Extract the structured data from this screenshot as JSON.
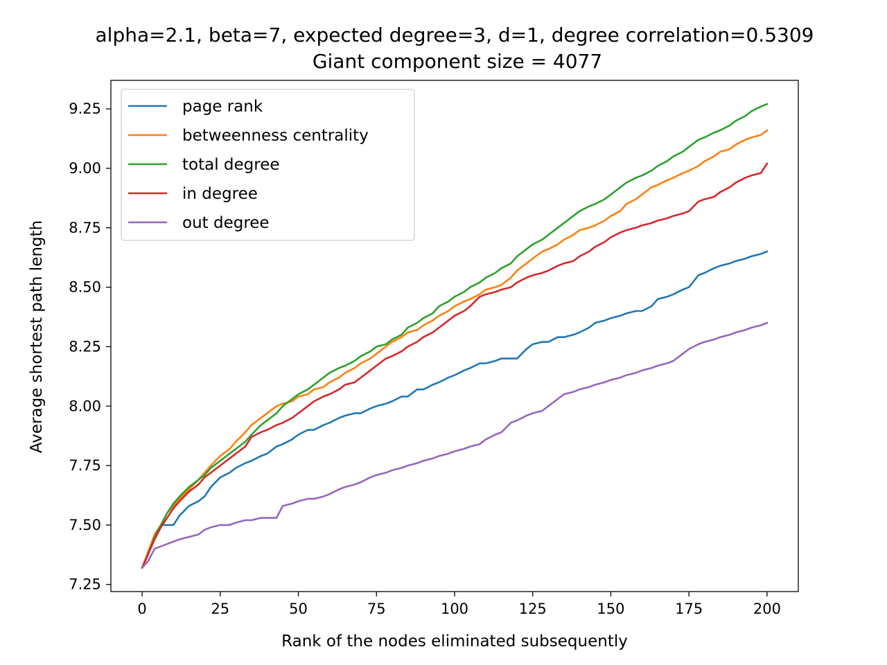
{
  "chart_data": {
    "type": "line",
    "title": "alpha=2.1, beta=7, expected degree=3, d=1, degree correlation=0.5309",
    "subtitle": "Giant component size = 4077",
    "xlabel": "Rank of the nodes eliminated subsequently",
    "ylabel": "Average shortest path length",
    "xlim": [
      -10,
      210
    ],
    "ylim": [
      7.22,
      9.37
    ],
    "xticks": [
      0,
      25,
      50,
      75,
      100,
      125,
      150,
      175,
      200
    ],
    "xtick_labels": [
      "0",
      "25",
      "50",
      "75",
      "100",
      "125",
      "150",
      "175",
      "200"
    ],
    "yticks": [
      7.25,
      7.5,
      7.75,
      8.0,
      8.25,
      8.5,
      8.75,
      9.0,
      9.25
    ],
    "ytick_labels": [
      "7.25",
      "7.50",
      "7.75",
      "8.00",
      "8.25",
      "8.50",
      "8.75",
      "9.00",
      "9.25"
    ],
    "grid": false,
    "legend_position": "top-left",
    "series": [
      {
        "name": "page rank",
        "color": "#1f77b4",
        "x": [
          0,
          2,
          4,
          6,
          8,
          10,
          12,
          15,
          18,
          20,
          22,
          25,
          28,
          30,
          33,
          35,
          38,
          40,
          43,
          45,
          48,
          50,
          53,
          55,
          58,
          60,
          63,
          65,
          68,
          70,
          73,
          75,
          78,
          80,
          83,
          85,
          88,
          90,
          93,
          95,
          98,
          100,
          103,
          105,
          108,
          110,
          113,
          115,
          118,
          120,
          123,
          125,
          128,
          130,
          133,
          135,
          138,
          140,
          143,
          145,
          148,
          150,
          153,
          155,
          158,
          160,
          163,
          165,
          168,
          170,
          173,
          175,
          178,
          180,
          183,
          185,
          188,
          190,
          193,
          195,
          198,
          200
        ],
        "y": [
          7.32,
          7.38,
          7.45,
          7.5,
          7.5,
          7.5,
          7.54,
          7.58,
          7.6,
          7.62,
          7.66,
          7.7,
          7.72,
          7.74,
          7.76,
          7.77,
          7.79,
          7.8,
          7.83,
          7.84,
          7.86,
          7.88,
          7.9,
          7.9,
          7.92,
          7.93,
          7.95,
          7.96,
          7.97,
          7.97,
          7.99,
          8.0,
          8.01,
          8.02,
          8.04,
          8.04,
          8.07,
          8.07,
          8.09,
          8.1,
          8.12,
          8.13,
          8.15,
          8.16,
          8.18,
          8.18,
          8.19,
          8.2,
          8.2,
          8.2,
          8.24,
          8.26,
          8.27,
          8.27,
          8.29,
          8.29,
          8.3,
          8.31,
          8.33,
          8.35,
          8.36,
          8.37,
          8.38,
          8.39,
          8.4,
          8.4,
          8.42,
          8.45,
          8.46,
          8.47,
          8.49,
          8.5,
          8.55,
          8.56,
          8.58,
          8.59,
          8.6,
          8.61,
          8.62,
          8.63,
          8.64,
          8.65
        ]
      },
      {
        "name": "betweenness centrality",
        "color": "#ff7f0e",
        "x": [
          0,
          2,
          4,
          6,
          8,
          10,
          12,
          15,
          18,
          20,
          22,
          25,
          28,
          30,
          33,
          35,
          38,
          40,
          43,
          45,
          48,
          50,
          53,
          55,
          58,
          60,
          63,
          65,
          68,
          70,
          73,
          75,
          78,
          80,
          83,
          85,
          88,
          90,
          93,
          95,
          98,
          100,
          103,
          105,
          108,
          110,
          113,
          115,
          118,
          120,
          123,
          125,
          128,
          130,
          133,
          135,
          138,
          140,
          143,
          145,
          148,
          150,
          153,
          155,
          158,
          160,
          163,
          165,
          168,
          170,
          173,
          175,
          178,
          180,
          183,
          185,
          188,
          190,
          193,
          195,
          198,
          200
        ],
        "y": [
          7.32,
          7.39,
          7.46,
          7.5,
          7.55,
          7.58,
          7.61,
          7.65,
          7.69,
          7.72,
          7.75,
          7.79,
          7.82,
          7.85,
          7.89,
          7.92,
          7.95,
          7.97,
          8.0,
          8.01,
          8.02,
          8.04,
          8.05,
          8.07,
          8.08,
          8.1,
          8.12,
          8.14,
          8.16,
          8.18,
          8.2,
          8.22,
          8.25,
          8.27,
          8.29,
          8.31,
          8.32,
          8.34,
          8.36,
          8.38,
          8.4,
          8.42,
          8.44,
          8.45,
          8.47,
          8.49,
          8.5,
          8.51,
          8.54,
          8.57,
          8.6,
          8.62,
          8.65,
          8.66,
          8.68,
          8.7,
          8.72,
          8.74,
          8.75,
          8.76,
          8.78,
          8.8,
          8.82,
          8.85,
          8.87,
          8.89,
          8.92,
          8.93,
          8.95,
          8.96,
          8.98,
          8.99,
          9.01,
          9.03,
          9.05,
          9.07,
          9.08,
          9.1,
          9.12,
          9.13,
          9.14,
          9.16
        ]
      },
      {
        "name": "total degree",
        "color": "#2ca02c",
        "x": [
          0,
          2,
          4,
          6,
          8,
          10,
          12,
          15,
          18,
          20,
          22,
          25,
          28,
          30,
          33,
          35,
          38,
          40,
          43,
          45,
          48,
          50,
          53,
          55,
          58,
          60,
          63,
          65,
          68,
          70,
          73,
          75,
          78,
          80,
          83,
          85,
          88,
          90,
          93,
          95,
          98,
          100,
          103,
          105,
          108,
          110,
          113,
          115,
          118,
          120,
          123,
          125,
          128,
          130,
          133,
          135,
          138,
          140,
          143,
          145,
          148,
          150,
          153,
          155,
          158,
          160,
          163,
          165,
          168,
          170,
          173,
          175,
          178,
          180,
          183,
          185,
          188,
          190,
          193,
          195,
          198,
          200
        ],
        "y": [
          7.32,
          7.38,
          7.45,
          7.5,
          7.55,
          7.59,
          7.62,
          7.66,
          7.69,
          7.71,
          7.74,
          7.77,
          7.8,
          7.82,
          7.85,
          7.88,
          7.92,
          7.94,
          7.97,
          8.0,
          8.03,
          8.05,
          8.07,
          8.09,
          8.12,
          8.14,
          8.16,
          8.17,
          8.19,
          8.21,
          8.23,
          8.25,
          8.26,
          8.28,
          8.3,
          8.33,
          8.35,
          8.37,
          8.39,
          8.42,
          8.44,
          8.46,
          8.48,
          8.5,
          8.52,
          8.54,
          8.56,
          8.58,
          8.6,
          8.63,
          8.66,
          8.68,
          8.7,
          8.72,
          8.75,
          8.77,
          8.8,
          8.82,
          8.84,
          8.85,
          8.87,
          8.89,
          8.92,
          8.94,
          8.96,
          8.97,
          8.99,
          9.01,
          9.03,
          9.05,
          9.07,
          9.09,
          9.12,
          9.13,
          9.15,
          9.16,
          9.18,
          9.2,
          9.22,
          9.24,
          9.26,
          9.27
        ]
      },
      {
        "name": "in degree",
        "color": "#d62728",
        "x": [
          0,
          2,
          4,
          6,
          8,
          10,
          12,
          15,
          18,
          20,
          22,
          25,
          28,
          30,
          33,
          35,
          38,
          40,
          43,
          45,
          48,
          50,
          53,
          55,
          58,
          60,
          63,
          65,
          68,
          70,
          73,
          75,
          78,
          80,
          83,
          85,
          88,
          90,
          93,
          95,
          98,
          100,
          103,
          105,
          108,
          110,
          113,
          115,
          118,
          120,
          123,
          125,
          128,
          130,
          133,
          135,
          138,
          140,
          143,
          145,
          148,
          150,
          153,
          155,
          158,
          160,
          163,
          165,
          168,
          170,
          173,
          175,
          178,
          180,
          183,
          185,
          188,
          190,
          193,
          195,
          198,
          200
        ],
        "y": [
          7.32,
          7.38,
          7.44,
          7.49,
          7.53,
          7.57,
          7.6,
          7.64,
          7.67,
          7.7,
          7.72,
          7.75,
          7.78,
          7.8,
          7.83,
          7.87,
          7.89,
          7.9,
          7.92,
          7.93,
          7.95,
          7.97,
          8.0,
          8.02,
          8.04,
          8.05,
          8.07,
          8.09,
          8.1,
          8.12,
          8.15,
          8.17,
          8.2,
          8.21,
          8.23,
          8.25,
          8.27,
          8.29,
          8.31,
          8.33,
          8.36,
          8.38,
          8.4,
          8.42,
          8.46,
          8.47,
          8.48,
          8.49,
          8.5,
          8.52,
          8.54,
          8.55,
          8.56,
          8.57,
          8.59,
          8.6,
          8.61,
          8.63,
          8.65,
          8.67,
          8.69,
          8.71,
          8.73,
          8.74,
          8.75,
          8.76,
          8.77,
          8.78,
          8.79,
          8.8,
          8.81,
          8.82,
          8.86,
          8.87,
          8.88,
          8.9,
          8.92,
          8.94,
          8.96,
          8.97,
          8.98,
          9.02
        ]
      },
      {
        "name": "out degree",
        "color": "#9467bd",
        "x": [
          0,
          2,
          4,
          6,
          8,
          10,
          12,
          15,
          18,
          20,
          22,
          25,
          28,
          30,
          33,
          35,
          38,
          40,
          43,
          45,
          48,
          50,
          53,
          55,
          58,
          60,
          63,
          65,
          68,
          70,
          73,
          75,
          78,
          80,
          83,
          85,
          88,
          90,
          93,
          95,
          98,
          100,
          103,
          105,
          108,
          110,
          113,
          115,
          118,
          120,
          123,
          125,
          128,
          130,
          133,
          135,
          138,
          140,
          143,
          145,
          148,
          150,
          153,
          155,
          158,
          160,
          163,
          165,
          168,
          170,
          173,
          175,
          178,
          180,
          183,
          185,
          188,
          190,
          193,
          195,
          198,
          200
        ],
        "y": [
          7.32,
          7.35,
          7.4,
          7.41,
          7.42,
          7.43,
          7.44,
          7.45,
          7.46,
          7.48,
          7.49,
          7.5,
          7.5,
          7.51,
          7.52,
          7.52,
          7.53,
          7.53,
          7.53,
          7.58,
          7.59,
          7.6,
          7.61,
          7.61,
          7.62,
          7.63,
          7.65,
          7.66,
          7.67,
          7.68,
          7.7,
          7.71,
          7.72,
          7.73,
          7.74,
          7.75,
          7.76,
          7.77,
          7.78,
          7.79,
          7.8,
          7.81,
          7.82,
          7.83,
          7.84,
          7.86,
          7.88,
          7.89,
          7.93,
          7.94,
          7.96,
          7.97,
          7.98,
          8.0,
          8.03,
          8.05,
          8.06,
          8.07,
          8.08,
          8.09,
          8.1,
          8.11,
          8.12,
          8.13,
          8.14,
          8.15,
          8.16,
          8.17,
          8.18,
          8.19,
          8.22,
          8.24,
          8.26,
          8.27,
          8.28,
          8.29,
          8.3,
          8.31,
          8.32,
          8.33,
          8.34,
          8.35
        ]
      }
    ]
  }
}
